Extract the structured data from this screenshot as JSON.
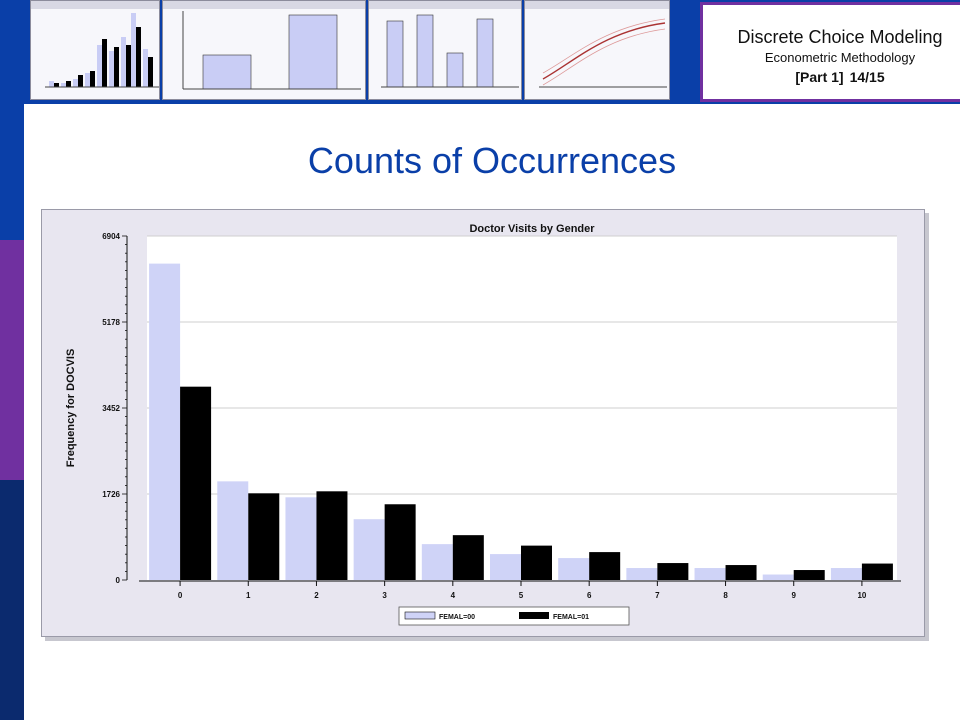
{
  "header": {
    "course_title": "Discrete Choice Modeling",
    "course_subtitle": "Econometric Methodology",
    "part_label": "[Part 1]",
    "page_label": "14/15"
  },
  "slide_title": "Counts of Occurrences",
  "colors": {
    "accent_blue": "#0a3fa8",
    "accent_purple": "#7030a0",
    "series_female0": "#cfd3f7",
    "series_female1": "#000000"
  },
  "chart_data": {
    "type": "bar",
    "title": "Doctor Visits by Gender",
    "ylabel": "Frequency for DOCVIS",
    "xlabel": "",
    "categories": [
      "0",
      "1",
      "2",
      "3",
      "4",
      "5",
      "6",
      "7",
      "8",
      "9",
      "10"
    ],
    "series": [
      {
        "name": "FEMAL=00",
        "values": [
          6350,
          1980,
          1660,
          1220,
          720,
          520,
          440,
          240,
          240,
          110,
          240
        ]
      },
      {
        "name": "FEMAL=01",
        "values": [
          3880,
          1740,
          1780,
          1520,
          900,
          690,
          560,
          340,
          300,
          200,
          330
        ]
      }
    ],
    "yticks": [
      "6904",
      "5178",
      "3452",
      "1726",
      "0"
    ],
    "ylim": [
      0,
      6904
    ],
    "grid": true,
    "legend": "bottom-center"
  }
}
